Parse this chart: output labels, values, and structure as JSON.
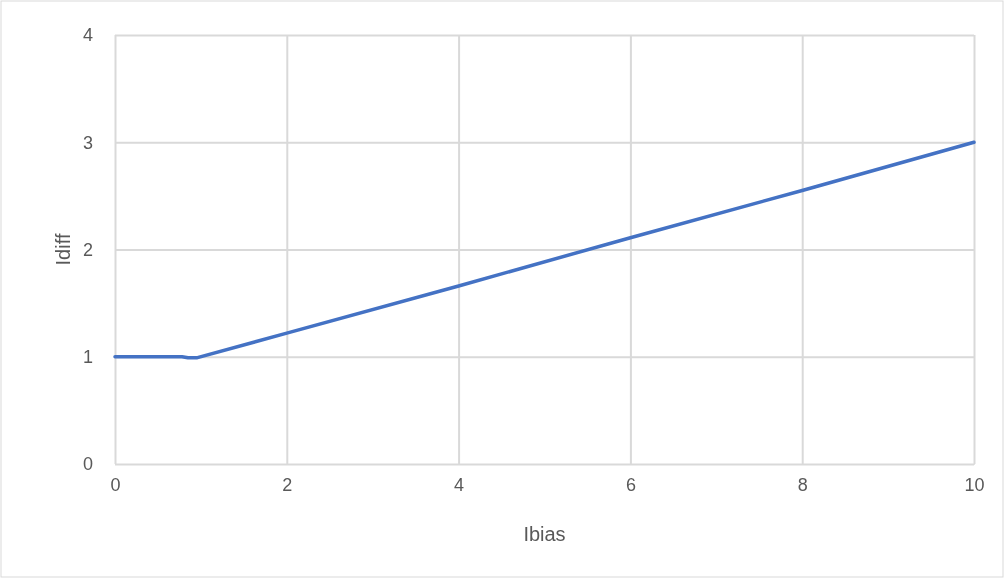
{
  "chart_data": {
    "type": "line",
    "xlabel": "Ibias",
    "ylabel": "Idiff",
    "series": [
      {
        "color": "#4472c4",
        "x": [
          0,
          0.2,
          0.4,
          0.6,
          0.78,
          0.85,
          0.95,
          2,
          4,
          6,
          8,
          10
        ],
        "values": [
          1,
          1,
          1,
          1,
          1,
          0.99,
          0.99,
          1.22,
          1.66,
          2.11,
          2.55,
          3
        ]
      }
    ],
    "xlim": [
      0,
      10
    ],
    "xticks": [
      0,
      2,
      4,
      6,
      8,
      10
    ],
    "ylim": [
      0,
      4
    ],
    "yticks": [
      0,
      1,
      2,
      3,
      4
    ],
    "grid": true,
    "marker": "none",
    "line_style": "solid"
  }
}
